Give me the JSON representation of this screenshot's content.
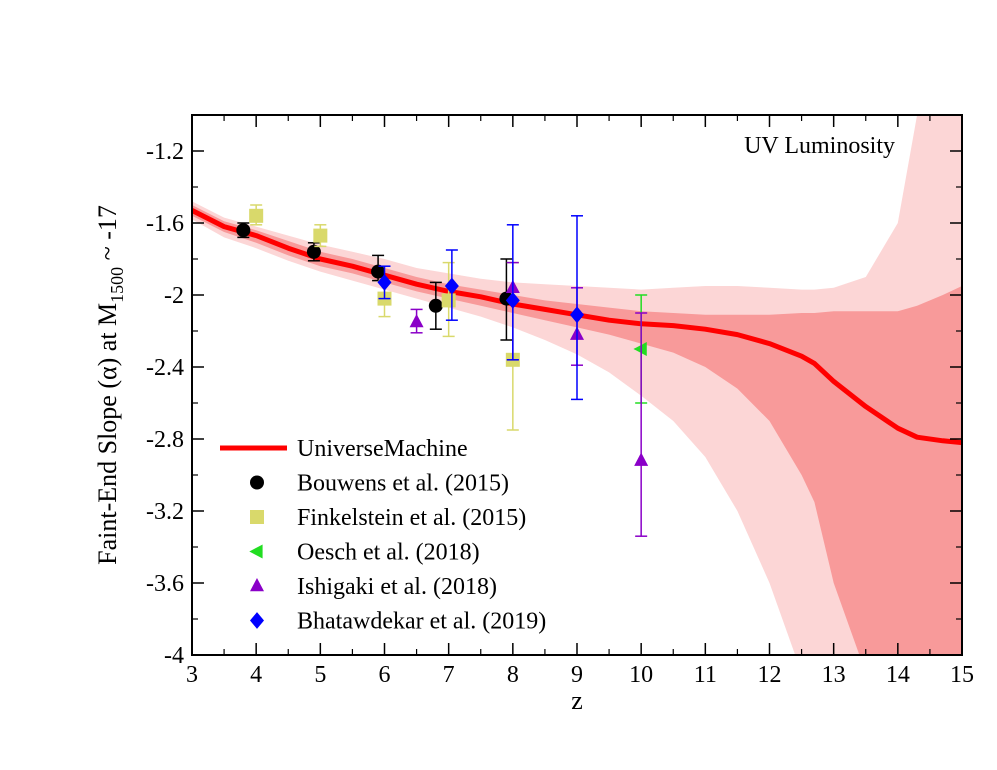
{
  "chart_data": {
    "type": "scatter",
    "title": "",
    "annotation": "UV Luminosity",
    "xlabel": "z",
    "ylabel": {
      "main": "Faint-End Slope (α) at M",
      "subscript": "1500",
      "suffix": " ~ -17"
    },
    "xlim": [
      3,
      15
    ],
    "ylim": [
      -4,
      -1.0
    ],
    "xticks": [
      3,
      4,
      5,
      6,
      7,
      8,
      9,
      10,
      11,
      12,
      13,
      14,
      15
    ],
    "yticks": [
      -4,
      -3.6,
      -3.2,
      -2.8,
      -2.4,
      -2,
      -1.6,
      -1.2
    ],
    "xtick_labels": [
      "3",
      "4",
      "5",
      "6",
      "7",
      "8",
      "9",
      "10",
      "11",
      "12",
      "13",
      "14",
      "15"
    ],
    "ytick_labels": [
      "-4",
      "-3.6",
      "-3.2",
      "-2.8",
      "-2.4",
      "-2",
      "-1.6",
      "-1.2"
    ],
    "model": {
      "name": "UniverseMachine",
      "color": "#ff0000",
      "x": [
        3.0,
        3.5,
        4.0,
        4.5,
        5.0,
        5.5,
        6.0,
        6.5,
        7.0,
        7.5,
        8.0,
        8.5,
        9.0,
        9.5,
        10.0,
        10.5,
        11.0,
        11.5,
        12.0,
        12.5,
        12.7,
        13.0,
        13.5,
        14.0,
        14.3,
        14.7,
        15.0
      ],
      "median": [
        -1.53,
        -1.62,
        -1.67,
        -1.74,
        -1.8,
        -1.84,
        -1.89,
        -1.94,
        -1.98,
        -2.01,
        -2.05,
        -2.08,
        -2.11,
        -2.14,
        -2.16,
        -2.17,
        -2.19,
        -2.22,
        -2.27,
        -2.34,
        -2.38,
        -2.48,
        -2.62,
        -2.74,
        -2.79,
        -2.81,
        -2.82
      ],
      "inner_band_color": "#f89a9a",
      "outer_band_color": "#fcd6d6",
      "inner_upper": [
        -1.5,
        -1.59,
        -1.64,
        -1.7,
        -1.76,
        -1.8,
        -1.85,
        -1.9,
        -1.94,
        -1.97,
        -2.0,
        -2.03,
        -2.05,
        -2.07,
        -2.09,
        -2.1,
        -2.11,
        -2.11,
        -2.11,
        -2.1,
        -2.1,
        -2.09,
        -2.09,
        -2.09,
        -2.06,
        -2.0,
        -1.95
      ],
      "inner_lower": [
        -1.56,
        -1.65,
        -1.71,
        -1.78,
        -1.84,
        -1.88,
        -1.93,
        -1.98,
        -2.02,
        -2.06,
        -2.1,
        -2.14,
        -2.18,
        -2.22,
        -2.27,
        -2.32,
        -2.4,
        -2.52,
        -2.7,
        -3.0,
        -3.15,
        -3.6,
        -4.1,
        -4.1,
        -4.1,
        -4.1,
        -4.1
      ],
      "outer_upper": [
        -1.48,
        -1.57,
        -1.62,
        -1.67,
        -1.72,
        -1.76,
        -1.8,
        -1.85,
        -1.88,
        -1.91,
        -1.93,
        -1.94,
        -1.95,
        -1.96,
        -1.97,
        -1.96,
        -1.95,
        -1.95,
        -1.96,
        -1.97,
        -1.97,
        -1.96,
        -1.9,
        -1.6,
        -1.0,
        -1.0,
        -1.0
      ],
      "outer_lower": [
        -1.58,
        -1.68,
        -1.74,
        -1.81,
        -1.87,
        -1.92,
        -1.97,
        -2.02,
        -2.07,
        -2.12,
        -2.18,
        -2.25,
        -2.33,
        -2.43,
        -2.56,
        -2.7,
        -2.9,
        -3.2,
        -3.6,
        -4.1,
        -4.1,
        -4.1,
        -4.1,
        -4.1,
        -4.1,
        -4.1,
        -4.1
      ]
    },
    "series": [
      {
        "name": "Bouwens et al. (2015)",
        "marker": "circle",
        "color": "#000000",
        "errbar_color": "#000000",
        "points": [
          {
            "x": 3.8,
            "y": -1.64,
            "ylo": -1.68,
            "yhi": -1.6
          },
          {
            "x": 4.9,
            "y": -1.76,
            "ylo": -1.81,
            "yhi": -1.71
          },
          {
            "x": 5.9,
            "y": -1.87,
            "ylo": -1.92,
            "yhi": -1.78
          },
          {
            "x": 6.8,
            "y": -2.06,
            "ylo": -2.19,
            "yhi": -1.93
          },
          {
            "x": 7.9,
            "y": -2.02,
            "ylo": -2.25,
            "yhi": -1.8
          }
        ]
      },
      {
        "name": "Finkelstein et al. (2015)",
        "marker": "square",
        "color": "#d9d96b",
        "errbar_color": "#d9d96b",
        "points": [
          {
            "x": 4.0,
            "y": -1.56,
            "ylo": -1.61,
            "yhi": -1.5
          },
          {
            "x": 5.0,
            "y": -1.67,
            "ylo": -1.73,
            "yhi": -1.61
          },
          {
            "x": 6.0,
            "y": -2.02,
            "ylo": -2.12,
            "yhi": -1.92
          },
          {
            "x": 7.0,
            "y": -2.03,
            "ylo": -2.23,
            "yhi": -1.82
          },
          {
            "x": 8.0,
            "y": -2.36,
            "ylo": -2.75,
            "yhi": -1.82
          }
        ]
      },
      {
        "name": "Oesch et al. (2018)",
        "marker": "triangle-left",
        "color": "#22dd22",
        "errbar_color": "#22dd22",
        "points": [
          {
            "x": 10.0,
            "y": -2.3,
            "ylo": -2.6,
            "yhi": -2.0
          }
        ]
      },
      {
        "name": "Ishigaki et al. (2018)",
        "marker": "triangle-up",
        "color": "#8a00c8",
        "errbar_color": "#8a00c8",
        "points": [
          {
            "x": 6.5,
            "y": -2.15,
            "ylo": -2.21,
            "yhi": -2.08
          },
          {
            "x": 8.0,
            "y": -1.96,
            "ylo": -2.36,
            "yhi": -1.82
          },
          {
            "x": 9.0,
            "y": -2.22,
            "ylo": -2.39,
            "yhi": -1.96
          },
          {
            "x": 10.0,
            "y": -2.92,
            "ylo": -3.34,
            "yhi": -2.1
          }
        ]
      },
      {
        "name": "Bhatawdekar et al. (2019)",
        "marker": "diamond",
        "color": "#0000ff",
        "errbar_color": "#0000ff",
        "points": [
          {
            "x": 6.0,
            "y": -1.93,
            "ylo": -2.02,
            "yhi": -1.84
          },
          {
            "x": 7.05,
            "y": -1.95,
            "ylo": -2.14,
            "yhi": -1.75
          },
          {
            "x": 8.0,
            "y": -2.03,
            "ylo": -2.36,
            "yhi": -1.61
          },
          {
            "x": 9.0,
            "y": -2.11,
            "ylo": -2.58,
            "yhi": -1.56
          }
        ]
      }
    ],
    "legend_placement": "bottom-left"
  }
}
